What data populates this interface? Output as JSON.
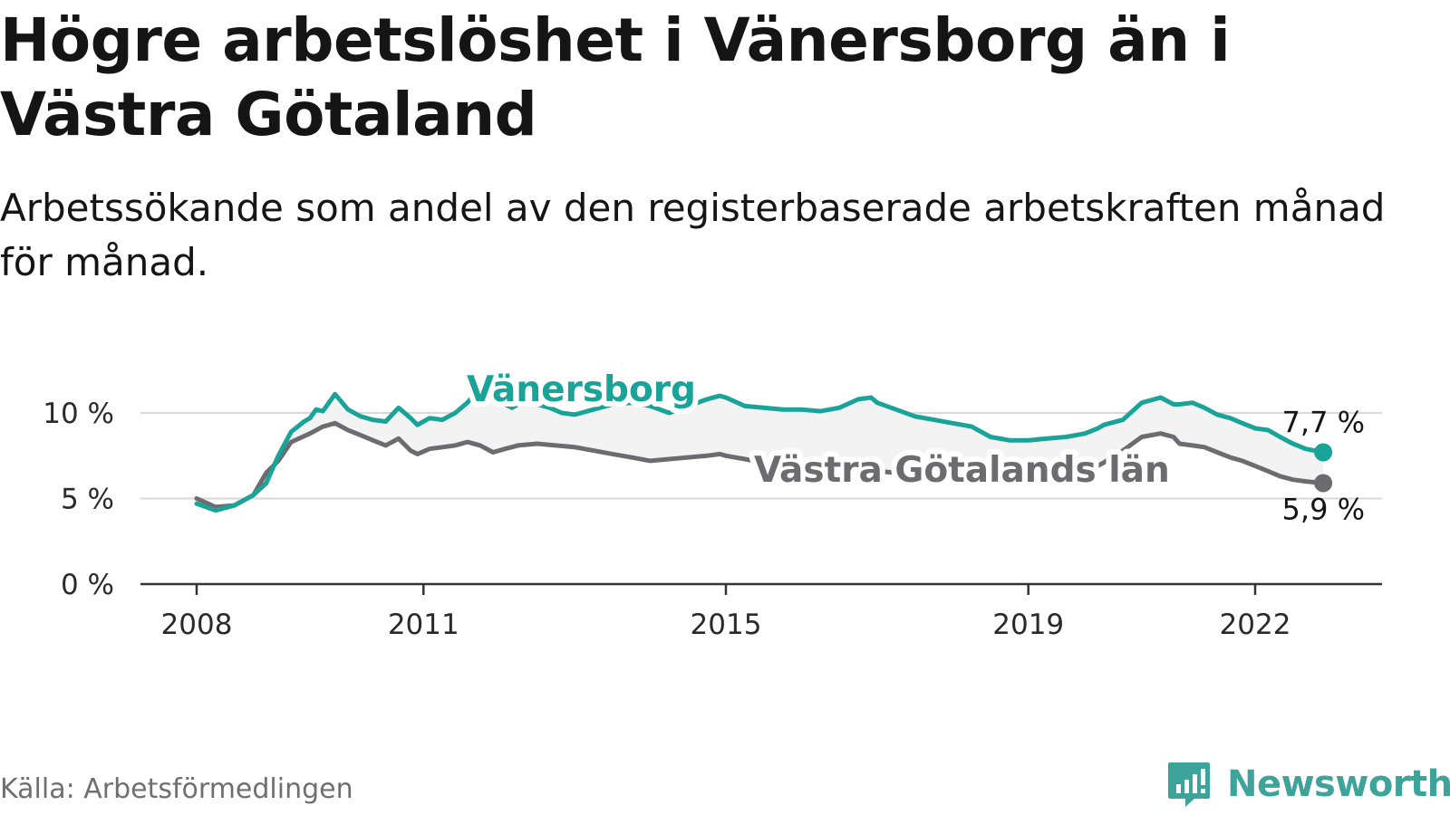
{
  "title": "Högre arbetslöshet i Vänersborg än i Västra Götaland",
  "subtitle": "Arbetssökande som andel av den registerbaserade arbetskraften månad för månad.",
  "source": "Källa: Arbetsförmedlingen",
  "logo_text": "Newsworthy",
  "colors": {
    "vanersborg": "#1aa398",
    "vastra": "#6b6b70",
    "grid": "#d9d9d9",
    "band": "#f3f3f3",
    "axis": "#333333"
  },
  "chart_data": {
    "type": "line",
    "title": "Högre arbetslöshet i Vänersborg än i Västra Götaland",
    "xlabel": "",
    "ylabel": "",
    "xlim": [
      2008,
      2022.9
    ],
    "ylim": [
      0,
      10
    ],
    "y_ticks": [
      0,
      5,
      10
    ],
    "y_tick_labels": [
      "0 %",
      "5 %",
      "10 %"
    ],
    "x_ticks": [
      2008,
      2011,
      2015,
      2019,
      2022
    ],
    "x_tick_labels": [
      "2008",
      "2011",
      "2015",
      "2019",
      "2022"
    ],
    "series": [
      {
        "name": "Vänersborg",
        "end_label": "7,7 %",
        "x": [
          2008.0,
          2008.25,
          2008.5,
          2008.75,
          2008.92,
          2009.08,
          2009.25,
          2009.42,
          2009.5,
          2009.58,
          2009.67,
          2009.83,
          2010.0,
          2010.17,
          2010.33,
          2010.5,
          2010.67,
          2010.83,
          2010.92,
          2011.08,
          2011.25,
          2011.42,
          2011.58,
          2011.75,
          2011.92,
          2012.08,
          2012.17,
          2012.33,
          2012.5,
          2012.67,
          2012.83,
          2013.0,
          2013.25,
          2013.5,
          2013.75,
          2014.0,
          2014.25,
          2014.5,
          2014.75,
          2014.92,
          2015.0,
          2015.25,
          2015.5,
          2015.75,
          2016.0,
          2016.25,
          2016.5,
          2016.75,
          2016.92,
          2017.0,
          2017.25,
          2017.5,
          2017.75,
          2018.0,
          2018.25,
          2018.5,
          2018.75,
          2019.0,
          2019.25,
          2019.5,
          2019.75,
          2019.92,
          2020.0,
          2020.25,
          2020.5,
          2020.75,
          2020.92,
          2021.0,
          2021.17,
          2021.33,
          2021.5,
          2021.67,
          2021.83,
          2022.0,
          2022.17,
          2022.33,
          2022.5,
          2022.67,
          2022.9
        ],
        "y": [
          4.7,
          4.3,
          4.6,
          5.2,
          5.9,
          7.5,
          8.9,
          9.5,
          9.7,
          10.2,
          10.1,
          11.1,
          10.2,
          9.8,
          9.6,
          9.5,
          10.3,
          9.7,
          9.3,
          9.7,
          9.6,
          10.0,
          10.6,
          11.5,
          11.0,
          10.5,
          10.3,
          10.7,
          10.5,
          10.3,
          10.0,
          9.9,
          10.2,
          10.5,
          10.6,
          10.4,
          10.0,
          10.4,
          10.8,
          11.0,
          10.9,
          10.4,
          10.3,
          10.2,
          10.2,
          10.1,
          10.3,
          10.8,
          10.9,
          10.6,
          10.2,
          9.8,
          9.6,
          9.4,
          9.2,
          8.6,
          8.4,
          8.4,
          8.5,
          8.6,
          8.8,
          9.1,
          9.3,
          9.6,
          10.6,
          10.9,
          10.5,
          10.5,
          10.6,
          10.3,
          9.9,
          9.7,
          9.4,
          9.1,
          9.0,
          8.6,
          8.2,
          7.9,
          7.7
        ]
      },
      {
        "name": "Västra Götalands län",
        "end_label": "5,9 %",
        "x": [
          2008.0,
          2008.25,
          2008.5,
          2008.75,
          2008.92,
          2009.08,
          2009.25,
          2009.5,
          2009.67,
          2009.83,
          2010.0,
          2010.17,
          2010.33,
          2010.5,
          2010.67,
          2010.83,
          2010.92,
          2011.08,
          2011.25,
          2011.42,
          2011.58,
          2011.75,
          2011.92,
          2012.08,
          2012.25,
          2012.5,
          2012.75,
          2013.0,
          2013.25,
          2013.5,
          2013.75,
          2014.0,
          2014.25,
          2014.5,
          2014.75,
          2014.92,
          2015.0,
          2015.25,
          2015.5,
          2015.75,
          2016.0,
          2016.25,
          2016.5,
          2016.75,
          2017.0,
          2017.25,
          2017.5,
          2017.75,
          2018.0,
          2018.25,
          2018.5,
          2018.75,
          2019.0,
          2019.25,
          2019.5,
          2019.75,
          2020.0,
          2020.25,
          2020.5,
          2020.75,
          2020.92,
          2021.0,
          2021.17,
          2021.33,
          2021.5,
          2021.67,
          2021.83,
          2022.0,
          2022.17,
          2022.33,
          2022.5,
          2022.67,
          2022.9
        ],
        "y": [
          5.0,
          4.5,
          4.6,
          5.2,
          6.5,
          7.2,
          8.3,
          8.8,
          9.2,
          9.4,
          9.0,
          8.7,
          8.4,
          8.1,
          8.5,
          7.8,
          7.6,
          7.9,
          8.0,
          8.1,
          8.3,
          8.1,
          7.7,
          7.9,
          8.1,
          8.2,
          8.1,
          8.0,
          7.8,
          7.6,
          7.4,
          7.2,
          7.3,
          7.4,
          7.5,
          7.6,
          7.5,
          7.3,
          7.1,
          7.0,
          7.0,
          6.9,
          6.8,
          6.7,
          6.6,
          6.5,
          6.4,
          6.4,
          6.3,
          6.2,
          6.1,
          6.0,
          6.0,
          6.1,
          6.2,
          6.5,
          7.1,
          7.8,
          8.6,
          8.8,
          8.6,
          8.2,
          8.1,
          8.0,
          7.7,
          7.4,
          7.2,
          6.9,
          6.6,
          6.3,
          6.1,
          6.0,
          5.9
        ]
      }
    ]
  }
}
